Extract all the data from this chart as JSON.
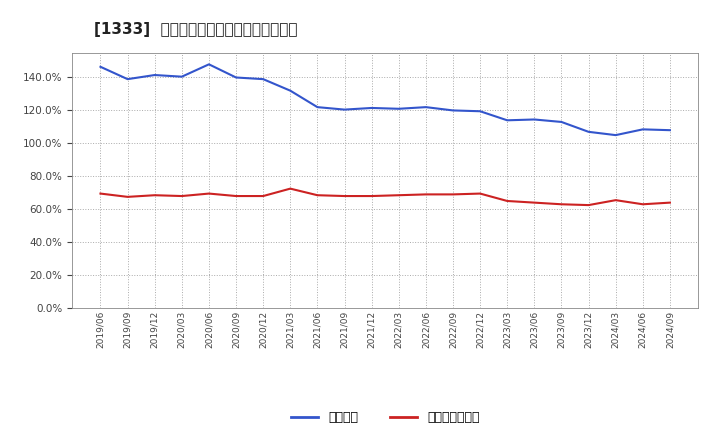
{
  "title": "[1333]  固定比率、固定長期適合率の推移",
  "x_labels": [
    "2019/06",
    "2019/09",
    "2019/12",
    "2020/03",
    "2020/06",
    "2020/09",
    "2020/12",
    "2021/03",
    "2021/06",
    "2021/09",
    "2021/12",
    "2022/03",
    "2022/06",
    "2022/09",
    "2022/12",
    "2023/03",
    "2023/06",
    "2023/09",
    "2023/12",
    "2024/03",
    "2024/06",
    "2024/09"
  ],
  "fixed_ratio": [
    146.5,
    139.0,
    141.5,
    140.5,
    148.0,
    140.0,
    139.0,
    132.0,
    122.0,
    120.5,
    121.5,
    121.0,
    122.0,
    120.0,
    119.5,
    114.0,
    114.5,
    113.0,
    107.0,
    105.0,
    108.5,
    108.0
  ],
  "fixed_lt_ratio": [
    69.5,
    67.5,
    68.5,
    68.0,
    69.5,
    68.0,
    68.0,
    72.5,
    68.5,
    68.0,
    68.0,
    68.5,
    69.0,
    69.0,
    69.5,
    65.0,
    64.0,
    63.0,
    62.5,
    65.5,
    63.0,
    64.0
  ],
  "blue_color": "#3355cc",
  "red_color": "#cc2222",
  "background_color": "#ffffff",
  "plot_bg_color": "#ffffff",
  "grid_color": "#aaaaaa",
  "ylim": [
    0,
    155
  ],
  "yticks": [
    0,
    20,
    40,
    60,
    80,
    100,
    120,
    140
  ],
  "legend_blue": "固定比率",
  "legend_red": "固定長期適合率"
}
